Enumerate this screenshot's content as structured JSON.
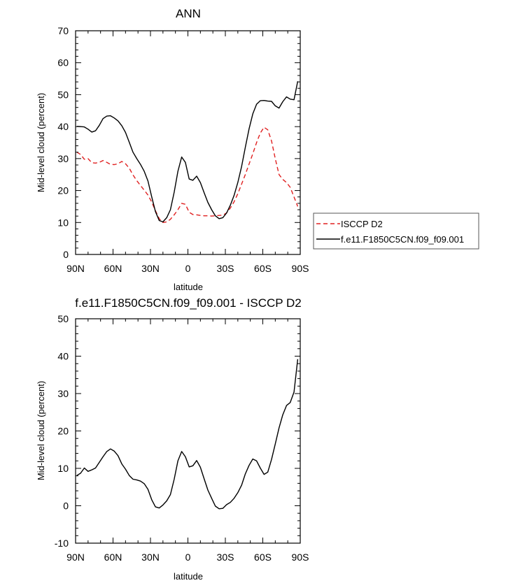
{
  "chart_data": [
    {
      "type": "line",
      "title": "ANN",
      "xlabel": "latitude",
      "ylabel": "Mid-level cloud (percent)",
      "xlim": [
        -90,
        90
      ],
      "ylim": [
        0,
        70
      ],
      "x_ticks": [
        -90,
        -60,
        -30,
        0,
        30,
        60,
        90
      ],
      "x_tick_labels": [
        "90N",
        "60N",
        "30N",
        "0",
        "30S",
        "60S",
        "90S"
      ],
      "y_ticks": [
        0,
        10,
        20,
        30,
        40,
        50,
        60,
        70
      ],
      "y_tick_labels": [
        "0",
        "10",
        "20",
        "30",
        "40",
        "50",
        "60",
        "70"
      ],
      "grid": false,
      "legend_position": "right",
      "series": [
        {
          "name": "ISCCP D2",
          "color": "#e02020",
          "dash": "dashed",
          "x": [
            -89,
            -86,
            -83,
            -80,
            -77,
            -74,
            -71,
            -68,
            -65,
            -62,
            -59,
            -56,
            -53,
            -50,
            -47,
            -44,
            -41,
            -38,
            -35,
            -32,
            -29,
            -26,
            -23,
            -20,
            -17,
            -14,
            -11,
            -8,
            -5,
            -2,
            1,
            4,
            7,
            10,
            13,
            16,
            19,
            22,
            25,
            28,
            31,
            34,
            37,
            40,
            43,
            46,
            49,
            52,
            55,
            58,
            61,
            64,
            67,
            70,
            73,
            76,
            79,
            82,
            85,
            88
          ],
          "y": [
            32,
            31.3,
            29.8,
            30,
            28.7,
            28.6,
            28.8,
            29.4,
            28.8,
            28.2,
            28.1,
            28.4,
            29.1,
            28.4,
            27,
            24.9,
            23.1,
            21.6,
            20.1,
            18.6,
            16.4,
            13.7,
            11.2,
            10,
            10.2,
            11,
            12.4,
            14,
            16,
            15.7,
            13.2,
            12.5,
            12.4,
            12.2,
            12.1,
            12.1,
            12,
            12.1,
            12.2,
            12.3,
            13,
            14.5,
            16.5,
            19,
            22,
            25,
            28.3,
            31.5,
            35,
            38,
            39.8,
            39,
            35.5,
            30,
            25,
            23.5,
            22.5,
            21,
            18,
            15
          ]
        },
        {
          "name": "f.e11.F1850C5CN.f09_f09.001",
          "color": "#000000",
          "dash": "solid",
          "x": [
            -89,
            -86,
            -83,
            -80,
            -77,
            -74,
            -71,
            -68,
            -65,
            -62,
            -59,
            -56,
            -53,
            -50,
            -47,
            -44,
            -41,
            -38,
            -35,
            -32,
            -29,
            -26,
            -23,
            -20,
            -17,
            -14,
            -11,
            -8,
            -5,
            -2,
            1,
            4,
            7,
            10,
            13,
            16,
            19,
            22,
            25,
            28,
            31,
            34,
            37,
            40,
            43,
            46,
            49,
            52,
            55,
            58,
            61,
            64,
            67,
            70,
            73,
            76,
            79,
            82,
            85,
            88
          ],
          "y": [
            40.1,
            40,
            39.9,
            39.2,
            38.3,
            38.7,
            40.4,
            42.5,
            43.3,
            43.4,
            42.7,
            41.8,
            40.3,
            38.2,
            35.1,
            32,
            30,
            28.2,
            26,
            23,
            18,
            13.4,
            10.6,
            10.2,
            11.5,
            14,
            19.5,
            26,
            30.5,
            28.8,
            23.6,
            23.2,
            24.5,
            22.5,
            19.3,
            16.3,
            14,
            12.1,
            11.2,
            11.5,
            13,
            15.4,
            18.5,
            22.5,
            27.5,
            33.5,
            39.3,
            44,
            47,
            48.1,
            48.2,
            48,
            47.9,
            46.5,
            45.8,
            47.8,
            49.3,
            48.6,
            48.4,
            54.2
          ]
        }
      ]
    },
    {
      "type": "line",
      "title": "f.e11.F1850C5CN.f09_f09.001 - ISCCP D2",
      "xlabel": "latitude",
      "ylabel": "Mid-level cloud (percent)",
      "xlim": [
        -90,
        90
      ],
      "ylim": [
        -10,
        50
      ],
      "x_ticks": [
        -90,
        -60,
        -30,
        0,
        30,
        60,
        90
      ],
      "x_tick_labels": [
        "90N",
        "60N",
        "30N",
        "0",
        "30S",
        "60S",
        "90S"
      ],
      "y_ticks": [
        -10,
        0,
        10,
        20,
        30,
        40,
        50
      ],
      "y_tick_labels": [
        "-10",
        "0",
        "10",
        "20",
        "30",
        "40",
        "50"
      ],
      "grid": false,
      "series": [
        {
          "color": "#000000",
          "dash": "solid",
          "x": [
            -89,
            -86,
            -83,
            -80,
            -77,
            -74,
            -71,
            -68,
            -65,
            -62,
            -59,
            -56,
            -53,
            -50,
            -47,
            -44,
            -41,
            -38,
            -35,
            -32,
            -29,
            -26,
            -23,
            -20,
            -17,
            -14,
            -11,
            -8,
            -5,
            -2,
            1,
            4,
            7,
            10,
            13,
            16,
            19,
            22,
            25,
            28,
            31,
            34,
            37,
            40,
            43,
            46,
            49,
            52,
            55,
            58,
            61,
            64,
            67,
            70,
            73,
            76,
            79,
            82,
            85,
            88
          ],
          "y": [
            8.1,
            8.7,
            10.1,
            9.2,
            9.6,
            10.1,
            11.6,
            13.1,
            14.5,
            15.2,
            14.6,
            13.4,
            11.2,
            9.8,
            8.1,
            7.1,
            6.9,
            6.6,
            5.9,
            4.4,
            1.6,
            -0.3,
            -0.6,
            0.2,
            1.3,
            3,
            7.1,
            12,
            14.5,
            13.1,
            10.4,
            10.7,
            12.1,
            10.3,
            7.2,
            4.2,
            2,
            -0.1,
            -0.8,
            -0.7,
            0.3,
            0.9,
            2,
            3.5,
            5.5,
            8.5,
            10.8,
            12.5,
            12,
            10.1,
            8.4,
            9,
            12.4,
            16.5,
            20.8,
            24.3,
            26.8,
            27.6,
            30.4,
            39.2
          ]
        }
      ]
    }
  ]
}
